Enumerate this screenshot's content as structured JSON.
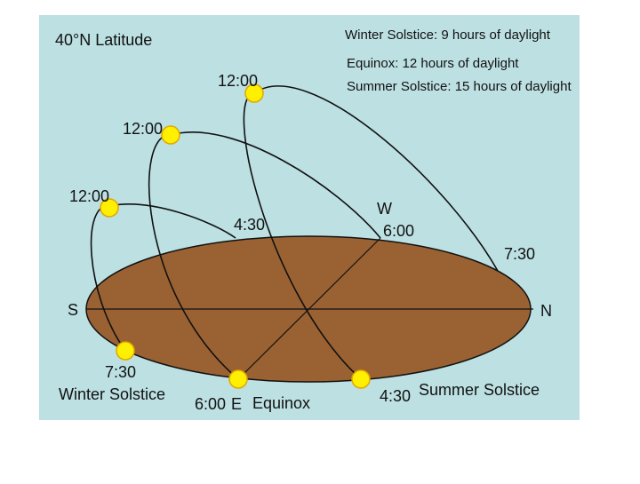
{
  "title": "40°N Latitude",
  "legend": [
    "Winter Solstice: 9 hours of daylight",
    "Equinox: 12 hours of daylight",
    "Summer Solstice: 15 hours of daylight"
  ],
  "compass": {
    "south": "S",
    "north": "N",
    "west": "W",
    "east": "E"
  },
  "paths": [
    {
      "name": "Winter Solstice",
      "sunrise": "7:30",
      "noon": "12:00",
      "sunset": "4:30"
    },
    {
      "name": "Equinox",
      "sunrise": "6:00",
      "noon": "12:00",
      "sunset": "6:00"
    },
    {
      "name": "Summer Solstice",
      "sunrise": "4:30",
      "noon": "12:00",
      "sunset": "7:30"
    }
  ]
}
